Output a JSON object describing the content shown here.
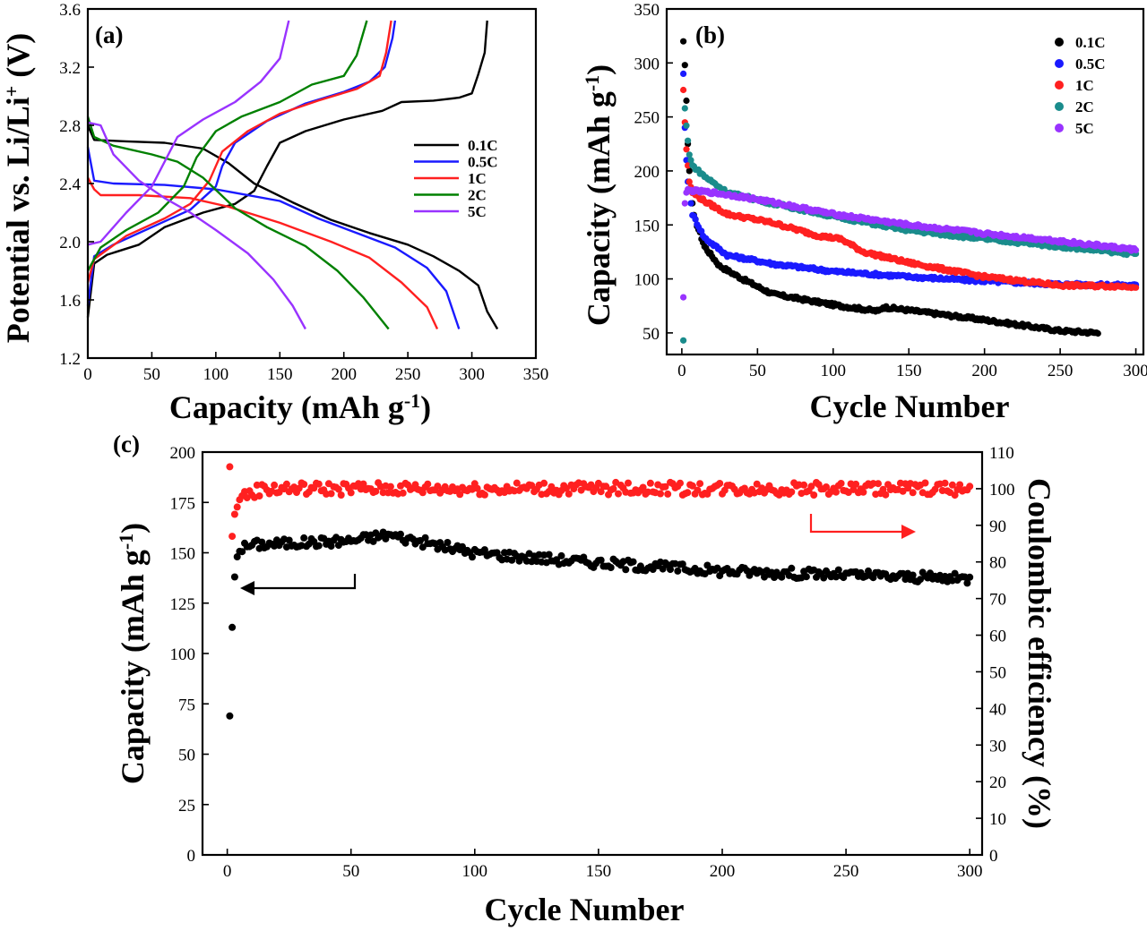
{
  "chart_data": [
    {
      "panel": "(a)",
      "type": "line",
      "xlabel": "Capacity (mAh g-1)",
      "ylabel": "Potential vs. Li/Li+ (V)",
      "xlim": [
        0,
        350
      ],
      "ylim": [
        1.2,
        3.6
      ],
      "xticks": [
        "0",
        "50",
        "100",
        "150",
        "200",
        "250",
        "300",
        "350"
      ],
      "yticks": [
        "1.2",
        "1.6",
        "2.0",
        "2.4",
        "2.8",
        "3.2",
        "3.6"
      ],
      "legend_position": "center-right",
      "series": [
        {
          "name": "0.1C",
          "color": "#000000",
          "discharge": [
            [
              0,
              2.8
            ],
            [
              5,
              2.7
            ],
            [
              30,
              2.69
            ],
            [
              60,
              2.68
            ],
            [
              90,
              2.64
            ],
            [
              110,
              2.54
            ],
            [
              130,
              2.4
            ],
            [
              160,
              2.27
            ],
            [
              190,
              2.15
            ],
            [
              220,
              2.06
            ],
            [
              250,
              1.98
            ],
            [
              270,
              1.9
            ],
            [
              290,
              1.8
            ],
            [
              305,
              1.7
            ],
            [
              312,
              1.52
            ],
            [
              320,
              1.4
            ]
          ],
          "charge": [
            [
              0,
              1.48
            ],
            [
              5,
              1.85
            ],
            [
              15,
              1.91
            ],
            [
              40,
              1.98
            ],
            [
              60,
              2.1
            ],
            [
              90,
              2.2
            ],
            [
              115,
              2.26
            ],
            [
              130,
              2.35
            ],
            [
              140,
              2.52
            ],
            [
              150,
              2.68
            ],
            [
              170,
              2.76
            ],
            [
              200,
              2.84
            ],
            [
              230,
              2.9
            ],
            [
              245,
              2.96
            ],
            [
              270,
              2.97
            ],
            [
              290,
              2.99
            ],
            [
              300,
              3.02
            ],
            [
              305,
              3.15
            ],
            [
              310,
              3.3
            ],
            [
              312,
              3.52
            ]
          ]
        },
        {
          "name": "0.5C",
          "color": "#1a1aff",
          "discharge": [
            [
              0,
              2.65
            ],
            [
              5,
              2.42
            ],
            [
              20,
              2.4
            ],
            [
              60,
              2.39
            ],
            [
              100,
              2.36
            ],
            [
              150,
              2.28
            ],
            [
              180,
              2.16
            ],
            [
              210,
              2.06
            ],
            [
              240,
              1.96
            ],
            [
              265,
              1.82
            ],
            [
              280,
              1.66
            ],
            [
              290,
              1.4
            ]
          ],
          "charge": [
            [
              0,
              1.56
            ],
            [
              5,
              1.9
            ],
            [
              20,
              1.98
            ],
            [
              50,
              2.1
            ],
            [
              80,
              2.22
            ],
            [
              100,
              2.38
            ],
            [
              105,
              2.52
            ],
            [
              115,
              2.68
            ],
            [
              140,
              2.83
            ],
            [
              170,
              2.95
            ],
            [
              200,
              3.03
            ],
            [
              220,
              3.1
            ],
            [
              232,
              3.2
            ],
            [
              238,
              3.4
            ],
            [
              240,
              3.52
            ]
          ]
        },
        {
          "name": "1C",
          "color": "#ff2020",
          "discharge": [
            [
              0,
              2.44
            ],
            [
              5,
              2.36
            ],
            [
              10,
              2.32
            ],
            [
              40,
              2.32
            ],
            [
              80,
              2.3
            ],
            [
              110,
              2.24
            ],
            [
              150,
              2.13
            ],
            [
              190,
              2.0
            ],
            [
              220,
              1.89
            ],
            [
              245,
              1.72
            ],
            [
              265,
              1.55
            ],
            [
              273,
              1.4
            ]
          ],
          "charge": [
            [
              0,
              1.72
            ],
            [
              5,
              1.88
            ],
            [
              30,
              2.04
            ],
            [
              60,
              2.16
            ],
            [
              80,
              2.26
            ],
            [
              95,
              2.42
            ],
            [
              105,
              2.62
            ],
            [
              125,
              2.76
            ],
            [
              150,
              2.88
            ],
            [
              180,
              2.97
            ],
            [
              210,
              3.05
            ],
            [
              228,
              3.14
            ],
            [
              233,
              3.3
            ],
            [
              237,
              3.52
            ]
          ]
        },
        {
          "name": "2C",
          "color": "#008000",
          "discharge": [
            [
              0,
              2.86
            ],
            [
              5,
              2.72
            ],
            [
              20,
              2.66
            ],
            [
              50,
              2.6
            ],
            [
              70,
              2.55
            ],
            [
              90,
              2.44
            ],
            [
              115,
              2.23
            ],
            [
              140,
              2.1
            ],
            [
              170,
              1.97
            ],
            [
              195,
              1.8
            ],
            [
              215,
              1.62
            ],
            [
              235,
              1.4
            ]
          ],
          "charge": [
            [
              0,
              1.8
            ],
            [
              10,
              1.96
            ],
            [
              30,
              2.08
            ],
            [
              55,
              2.2
            ],
            [
              75,
              2.38
            ],
            [
              85,
              2.58
            ],
            [
              100,
              2.76
            ],
            [
              120,
              2.86
            ],
            [
              150,
              2.96
            ],
            [
              175,
              3.08
            ],
            [
              200,
              3.14
            ],
            [
              210,
              3.28
            ],
            [
              218,
              3.52
            ]
          ]
        },
        {
          "name": "5C",
          "color": "#9933ff",
          "discharge": [
            [
              0,
              2.82
            ],
            [
              10,
              2.8
            ],
            [
              20,
              2.6
            ],
            [
              40,
              2.42
            ],
            [
              60,
              2.3
            ],
            [
              80,
              2.2
            ],
            [
              100,
              2.08
            ],
            [
              125,
              1.92
            ],
            [
              145,
              1.74
            ],
            [
              160,
              1.56
            ],
            [
              170,
              1.4
            ]
          ],
          "charge": [
            [
              0,
              1.98
            ],
            [
              10,
              2.0
            ],
            [
              30,
              2.2
            ],
            [
              50,
              2.38
            ],
            [
              70,
              2.72
            ],
            [
              90,
              2.84
            ],
            [
              115,
              2.96
            ],
            [
              135,
              3.1
            ],
            [
              150,
              3.26
            ],
            [
              157,
              3.52
            ]
          ]
        }
      ]
    },
    {
      "panel": "(b)",
      "type": "scatter",
      "xlabel": "Cycle Number",
      "ylabel": "Capacity (mAh g-1)",
      "xlim": [
        -10,
        305
      ],
      "ylim": [
        30,
        350
      ],
      "xticks": [
        "0",
        "50",
        "100",
        "150",
        "200",
        "250",
        "300"
      ],
      "yticks": [
        "50",
        "100",
        "150",
        "200",
        "250",
        "300",
        "350"
      ],
      "legend_position": "top-right",
      "series": [
        {
          "name": "0.1C",
          "color": "#000000",
          "last_cycle": 275,
          "early": [
            [
              1,
              320
            ],
            [
              2,
              298
            ],
            [
              3,
              265
            ],
            [
              4,
              225
            ],
            [
              5,
              200
            ],
            [
              6,
              185
            ],
            [
              7,
              170
            ]
          ],
          "trend": [
            [
              8,
              158
            ],
            [
              15,
              130
            ],
            [
              25,
              112
            ],
            [
              40,
              100
            ],
            [
              60,
              86
            ],
            [
              100,
              76
            ],
            [
              130,
              70
            ],
            [
              133,
              74
            ],
            [
              200,
              62
            ],
            [
              250,
              52
            ],
            [
              275,
              50
            ]
          ]
        },
        {
          "name": "0.5C",
          "color": "#1a1aff",
          "last_cycle": 300,
          "early": [
            [
              1,
              290
            ],
            [
              2,
              240
            ],
            [
              3,
              210
            ],
            [
              4,
              190
            ],
            [
              5,
              182
            ],
            [
              6,
              170
            ]
          ],
          "trend": [
            [
              7,
              160
            ],
            [
              15,
              138
            ],
            [
              30,
              122
            ],
            [
              60,
              114
            ],
            [
              100,
              107
            ],
            [
              150,
              102
            ],
            [
              200,
              98
            ],
            [
              250,
              95
            ],
            [
              300,
              94
            ]
          ]
        },
        {
          "name": "1C",
          "color": "#ff2020",
          "last_cycle": 300,
          "early": [
            [
              1,
              275
            ],
            [
              2,
              245
            ],
            [
              3,
              220
            ],
            [
              4,
              205
            ],
            [
              5,
              190
            ],
            [
              6,
              185
            ]
          ],
          "trend": [
            [
              7,
              180
            ],
            [
              15,
              172
            ],
            [
              30,
              160
            ],
            [
              60,
              152
            ],
            [
              90,
              140
            ],
            [
              105,
              137
            ],
            [
              120,
              125
            ],
            [
              150,
              115
            ],
            [
              200,
              102
            ],
            [
              250,
              94
            ],
            [
              300,
              93
            ]
          ]
        },
        {
          "name": "2C",
          "color": "#1a8c8c",
          "last_cycle": 300,
          "early": [
            [
              1,
              43
            ],
            [
              2,
              258
            ],
            [
              3,
              242
            ],
            [
              4,
              228
            ],
            [
              5,
              215
            ],
            [
              6,
              210
            ]
          ],
          "trend": [
            [
              7,
              205
            ],
            [
              15,
              195
            ],
            [
              30,
              180
            ],
            [
              60,
              170
            ],
            [
              100,
              158
            ],
            [
              150,
              145
            ],
            [
              200,
              137
            ],
            [
              250,
              130
            ],
            [
              300,
              123
            ]
          ]
        },
        {
          "name": "5C",
          "color": "#9933ff",
          "last_cycle": 300,
          "early": [
            [
              1,
              83
            ],
            [
              2,
              170
            ],
            [
              3,
              180
            ]
          ],
          "trend": [
            [
              4,
              182
            ],
            [
              20,
              180
            ],
            [
              40,
              176
            ],
            [
              60,
              171
            ],
            [
              100,
              160
            ],
            [
              150,
              150
            ],
            [
              200,
              142
            ],
            [
              250,
              135
            ],
            [
              300,
              127
            ]
          ]
        }
      ]
    },
    {
      "panel": "(c)",
      "type": "scatter",
      "xlabel": "Cycle Number",
      "ylabel_left": "Capacity (mAh g-1)",
      "ylabel_right": "Coulombic efficiency (%)",
      "xlim": [
        -10,
        305
      ],
      "ylim_left": [
        0,
        200
      ],
      "ylim_right": [
        0,
        110
      ],
      "xticks": [
        "0",
        "50",
        "100",
        "150",
        "200",
        "250",
        "300"
      ],
      "yticks_left": [
        "0",
        "25",
        "50",
        "75",
        "100",
        "125",
        "150",
        "175",
        "200"
      ],
      "yticks_right": [
        "0",
        "10",
        "20",
        "30",
        "40",
        "50",
        "60",
        "70",
        "80",
        "90",
        "100",
        "110"
      ],
      "series": [
        {
          "name": "capacity",
          "axis": "left",
          "color": "#000000",
          "last_cycle": 300,
          "early": [
            [
              1,
              69
            ],
            [
              2,
              113
            ],
            [
              3,
              138
            ],
            [
              4,
              148
            ]
          ],
          "trend": [
            [
              5,
              152
            ],
            [
              10,
              154
            ],
            [
              30,
              155
            ],
            [
              50,
              156
            ],
            [
              65,
              159
            ],
            [
              80,
              155
            ],
            [
              100,
              150
            ],
            [
              150,
              145
            ],
            [
              200,
              141
            ],
            [
              250,
              139
            ],
            [
              300,
              137
            ]
          ]
        },
        {
          "name": "coulombic efficiency",
          "axis": "right",
          "color": "#ff2020",
          "last_cycle": 300,
          "early": [
            [
              1,
              106
            ],
            [
              2,
              87
            ],
            [
              3,
              93
            ],
            [
              4,
              95
            ],
            [
              5,
              97
            ]
          ],
          "trend": [
            [
              6,
              98
            ],
            [
              15,
              100
            ],
            [
              300,
              100
            ]
          ]
        }
      ]
    }
  ]
}
